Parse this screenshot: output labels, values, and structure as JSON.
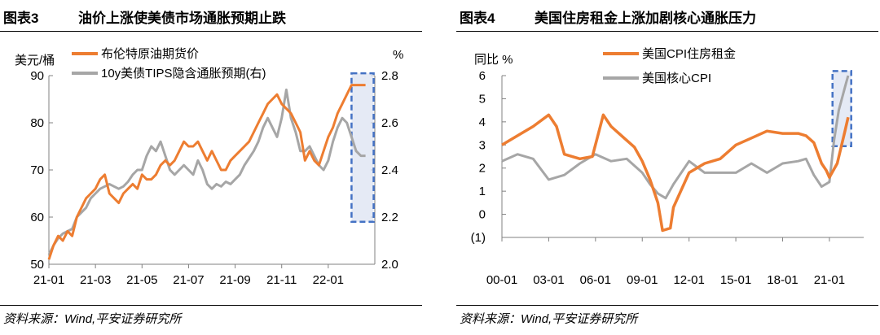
{
  "left": {
    "fig_no": "图表3",
    "title": "油价上涨使美债市场通胀预期止跌",
    "source": "资料来源：Wind,平安证券研究所",
    "chart_data": {
      "type": "line",
      "y_left_unit": "美元/桶",
      "y_right_unit": "%",
      "ylim_left": [
        50,
        90
      ],
      "ylim_right": [
        2.0,
        2.8
      ],
      "y_left_ticks": [
        "50",
        "60",
        "70",
        "80",
        "90"
      ],
      "y_right_ticks": [
        "2.0",
        "2.2",
        "2.4",
        "2.6",
        "2.8"
      ],
      "x_ticks": [
        "21-01",
        "21-03",
        "21-05",
        "21-07",
        "21-09",
        "21-11",
        "22-01"
      ],
      "series": [
        {
          "name": "布伦特原油期货价",
          "color": "#ED7D31",
          "axis": "left",
          "x": [
            0,
            0.2,
            0.4,
            0.6,
            0.8,
            1.0,
            1.2,
            1.4,
            1.6,
            1.8,
            2.0,
            2.2,
            2.4,
            2.6,
            2.8,
            3.0,
            3.2,
            3.4,
            3.6,
            3.8,
            4.0,
            4.2,
            4.4,
            4.6,
            4.8,
            5.0,
            5.2,
            5.4,
            5.6,
            5.8,
            6.0,
            6.2,
            6.4,
            6.6,
            6.8,
            7.0,
            7.2,
            7.4,
            7.6,
            7.8,
            8.0,
            8.2,
            8.4,
            8.6,
            8.8,
            9.0,
            9.2,
            9.4,
            9.6,
            9.8,
            10.0,
            10.2,
            10.4,
            10.6,
            10.8,
            11.0,
            11.2,
            11.4,
            11.6,
            11.8,
            12.0,
            12.2,
            12.4,
            12.6,
            12.8,
            13.0,
            13.2,
            13.4,
            13.6
          ],
          "values": [
            51,
            54,
            56,
            55,
            57,
            56,
            60,
            62,
            64,
            65,
            66,
            68,
            69,
            65,
            64,
            63,
            65,
            66,
            67,
            66,
            69,
            68,
            68,
            69,
            71,
            72,
            71,
            72,
            74,
            76,
            75,
            75,
            76,
            74,
            72,
            74,
            72,
            70,
            70,
            72,
            73,
            74,
            75,
            76,
            78,
            80,
            82,
            84,
            85,
            86,
            84,
            83,
            82,
            80,
            78,
            72,
            74,
            72,
            71,
            74,
            77,
            79,
            82,
            84,
            86,
            88,
            88,
            88,
            88
          ]
        },
        {
          "name": "10y美债TIPS隐含通胀预期(右)",
          "color": "#A6A6A6",
          "axis": "right",
          "x": [
            0,
            0.2,
            0.4,
            0.6,
            0.8,
            1.0,
            1.2,
            1.4,
            1.6,
            1.8,
            2.0,
            2.2,
            2.4,
            2.6,
            2.8,
            3.0,
            3.2,
            3.4,
            3.6,
            3.8,
            4.0,
            4.2,
            4.4,
            4.6,
            4.8,
            5.0,
            5.2,
            5.4,
            5.6,
            5.8,
            6.0,
            6.2,
            6.4,
            6.6,
            6.8,
            7.0,
            7.2,
            7.4,
            7.6,
            7.8,
            8.0,
            8.2,
            8.4,
            8.6,
            8.8,
            9.0,
            9.2,
            9.4,
            9.6,
            9.8,
            10.0,
            10.2,
            10.4,
            10.6,
            10.8,
            11.0,
            11.2,
            11.4,
            11.6,
            11.8,
            12.0,
            12.2,
            12.4,
            12.6,
            12.8,
            13.0,
            13.2,
            13.4,
            13.6
          ],
          "values": [
            2.04,
            2.08,
            2.11,
            2.13,
            2.14,
            2.15,
            2.2,
            2.22,
            2.24,
            2.28,
            2.3,
            2.32,
            2.33,
            2.34,
            2.33,
            2.32,
            2.33,
            2.35,
            2.38,
            2.4,
            2.4,
            2.46,
            2.5,
            2.48,
            2.52,
            2.46,
            2.4,
            2.38,
            2.4,
            2.42,
            2.4,
            2.38,
            2.44,
            2.4,
            2.34,
            2.32,
            2.34,
            2.33,
            2.35,
            2.34,
            2.36,
            2.38,
            2.42,
            2.45,
            2.48,
            2.52,
            2.58,
            2.62,
            2.58,
            2.54,
            2.62,
            2.74,
            2.62,
            2.56,
            2.48,
            2.48,
            2.5,
            2.46,
            2.42,
            2.4,
            2.44,
            2.52,
            2.58,
            2.62,
            2.6,
            2.54,
            2.48,
            2.46,
            2.46
          ]
        }
      ],
      "highlight": {
        "x_from": 13.0,
        "x_to": 13.95,
        "y_from": 59,
        "y_to": 90.5
      }
    }
  },
  "right": {
    "fig_no": "图表4",
    "title": "美国住房租金上涨加剧核心通胀压力",
    "source": "资料来源：Wind,平安证券研究所",
    "chart_data": {
      "type": "line",
      "y_unit": "同比 %",
      "ylim": [
        -1,
        6
      ],
      "y_ticks": [
        {
          "v": 6,
          "label": "6",
          "red": false
        },
        {
          "v": 5,
          "label": "5",
          "red": false
        },
        {
          "v": 4,
          "label": "4",
          "red": false
        },
        {
          "v": 3,
          "label": "3",
          "red": false
        },
        {
          "v": 2,
          "label": "2",
          "red": false
        },
        {
          "v": 1,
          "label": "1",
          "red": false
        },
        {
          "v": 0,
          "label": "0",
          "red": false
        },
        {
          "v": -1,
          "label": "(1)",
          "red": true
        }
      ],
      "x_ticks": [
        "00-01",
        "03-01",
        "06-01",
        "09-01",
        "12-01",
        "15-01",
        "18-01",
        "21-01"
      ],
      "series": [
        {
          "name": "美国CPI住房租金",
          "color": "#ED7D31",
          "x": [
            2000,
            2001,
            2002,
            2003,
            2003.5,
            2004,
            2005,
            2005.8,
            2006.5,
            2007,
            2008,
            2008.5,
            2009,
            2009.5,
            2010,
            2010.3,
            2010.8,
            2011,
            2012,
            2013,
            2014,
            2015,
            2016,
            2017,
            2018,
            2019,
            2019.5,
            2020,
            2020.5,
            2020.8,
            2021,
            2021.5,
            2022,
            2022.2
          ],
          "values": [
            3.0,
            3.4,
            3.8,
            4.3,
            3.8,
            2.6,
            2.4,
            2.5,
            4.3,
            3.8,
            3.2,
            2.9,
            2.3,
            1.5,
            0.5,
            -0.7,
            -0.6,
            0.3,
            1.8,
            2.2,
            2.4,
            3.0,
            3.3,
            3.6,
            3.5,
            3.5,
            3.4,
            3.1,
            2.2,
            1.9,
            1.6,
            2.2,
            3.6,
            4.2
          ]
        },
        {
          "name": "美国核心CPI",
          "color": "#A6A6A6",
          "x": [
            2000,
            2001,
            2002,
            2003,
            2004,
            2005,
            2006,
            2007,
            2008,
            2009,
            2009.5,
            2010,
            2010.5,
            2011,
            2012,
            2013,
            2014,
            2015,
            2016,
            2017,
            2018,
            2019,
            2019.5,
            2020,
            2020.5,
            2021,
            2021.3,
            2021.6,
            2022,
            2022.2
          ],
          "values": [
            2.3,
            2.6,
            2.4,
            1.5,
            1.7,
            2.2,
            2.6,
            2.3,
            2.4,
            1.8,
            1.3,
            0.9,
            0.7,
            1.3,
            2.3,
            1.8,
            1.8,
            1.8,
            2.2,
            1.8,
            2.2,
            2.3,
            2.4,
            1.7,
            1.2,
            1.4,
            3.2,
            4.5,
            5.5,
            6.0
          ]
        }
      ],
      "highlight": {
        "x_from": 2021.2,
        "x_to": 2022.4,
        "y_from": 2.95,
        "y_to": 6.2
      }
    }
  }
}
